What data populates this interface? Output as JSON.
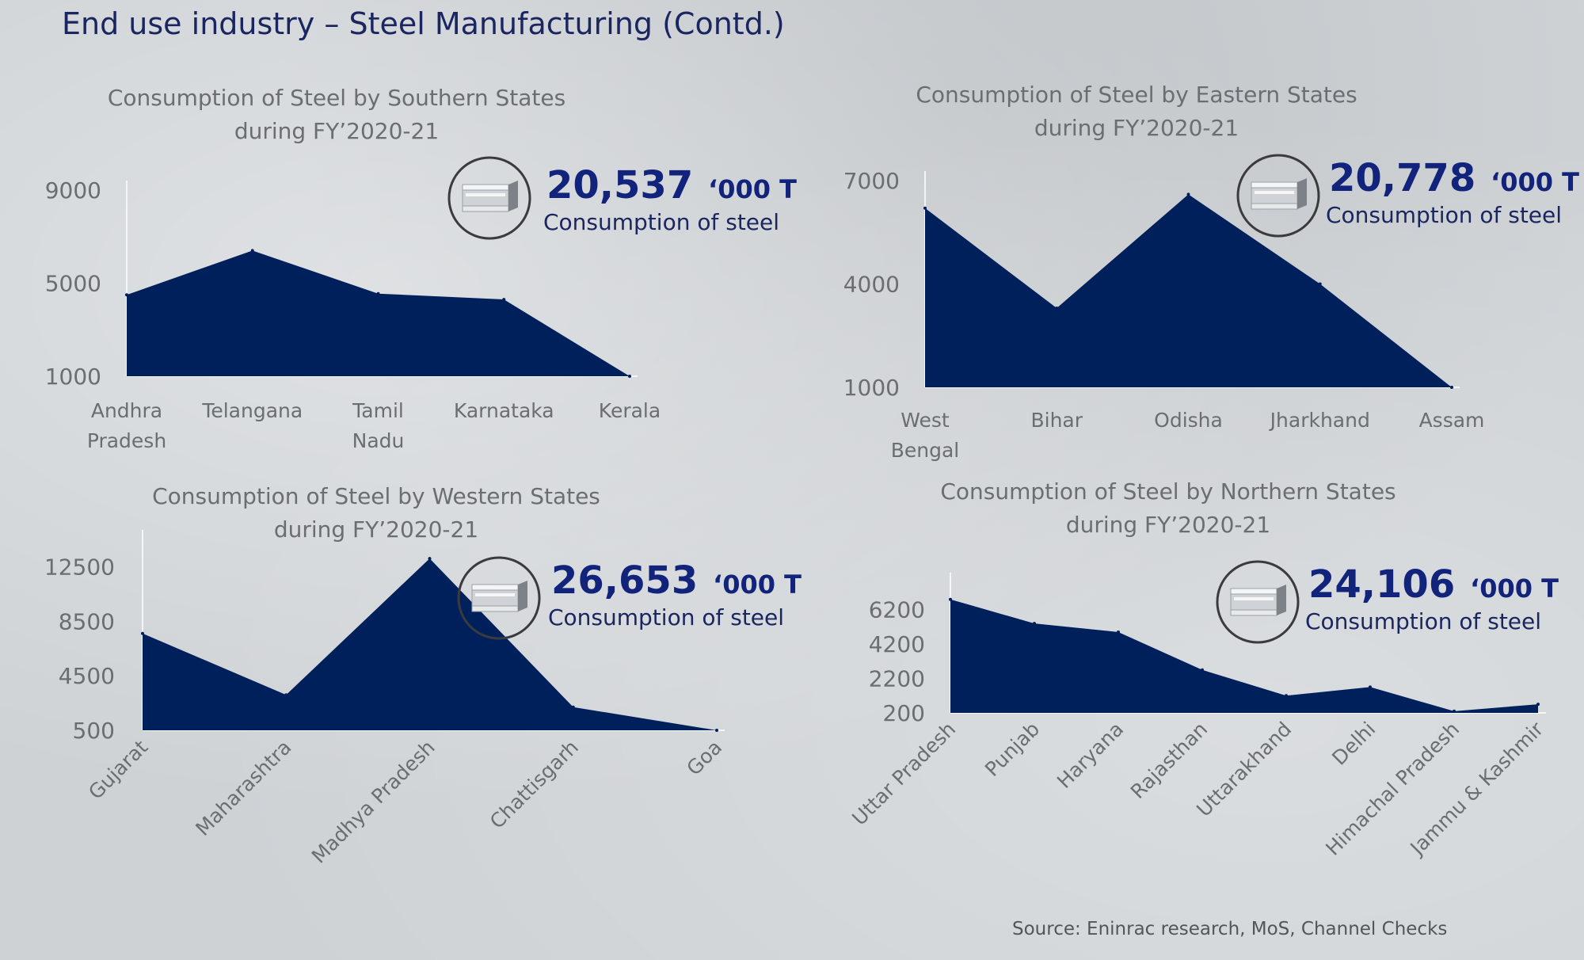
{
  "page": {
    "title": "End use industry – Steel Manufacturing (Contd.)",
    "source": "Source: Eninrac research, MoS, Channel Checks"
  },
  "chart_data": [
    {
      "id": "south",
      "type": "area",
      "title": [
        "Consumption of Steel by Southern States",
        "during FY’2020-21"
      ],
      "categories": [
        "Andhra Pradesh",
        "Telangana",
        "Tamil Nadu",
        "Karnataka",
        "Kerala"
      ],
      "category_lines": [
        [
          "Andhra",
          "Pradesh"
        ],
        [
          "Telangana"
        ],
        [
          "Tamil",
          "Nadu"
        ],
        [
          "Karnataka"
        ],
        [
          "Kerala"
        ]
      ],
      "values": [
        4500,
        6400,
        4550,
        4300,
        1000
      ],
      "yticks": [
        "9000",
        "5000",
        "1000"
      ],
      "ylim": [
        1000,
        9000
      ],
      "series_color": "#00205c",
      "callout": {
        "value": "20,537",
        "unit": "‘000 T",
        "label": "Consumption of steel",
        "icon": "steel-beam-icon"
      }
    },
    {
      "id": "east",
      "type": "area",
      "title": [
        "Consumption of Steel by Eastern States",
        "during FY’2020-21"
      ],
      "categories": [
        "West Bengal",
        "Bihar",
        "Odisha",
        "Jharkhand",
        "Assam"
      ],
      "category_lines": [
        [
          "West",
          "Bengal"
        ],
        [
          "Bihar"
        ],
        [
          "Odisha"
        ],
        [
          "Jharkhand"
        ],
        [
          "Assam"
        ]
      ],
      "values": [
        6200,
        3300,
        6600,
        4000,
        1000
      ],
      "yticks": [
        "7000",
        "4000",
        "1000"
      ],
      "ylim": [
        1000,
        7000
      ],
      "series_color": "#00205c",
      "callout": {
        "value": "20,778",
        "unit": "‘000 T",
        "label": "Consumption of steel",
        "icon": "steel-beam-icon"
      }
    },
    {
      "id": "west",
      "type": "area",
      "title": [
        "Consumption of Steel by Western States",
        "during FY’2020-21"
      ],
      "categories": [
        "Gujarat",
        "Maharashtra",
        "Madhya Pradesh",
        "Chattisgarh",
        "Goa"
      ],
      "values": [
        7600,
        3100,
        13100,
        2200,
        500
      ],
      "yticks": [
        "12500",
        "8500",
        "4500",
        "500"
      ],
      "ylim": [
        500,
        14500
      ],
      "series_color": "#00205c",
      "callout": {
        "value": "26,653",
        "unit": "‘000 T",
        "label": "Consumption of steel",
        "icon": "steel-beam-icon"
      }
    },
    {
      "id": "north",
      "type": "area",
      "title": [
        "Consumption of Steel by Northern States",
        "during FY’2020-21"
      ],
      "categories": [
        "Uttar Pradesh",
        "Punjab",
        "Haryana",
        "Rajasthan",
        "Uttarakhand",
        "Delhi",
        "Himachal Pradesh",
        "Jammu & Kashmir"
      ],
      "values": [
        6800,
        5400,
        4900,
        2700,
        1200,
        1700,
        300,
        700
      ],
      "yticks": [
        "6200",
        "4200",
        "2200",
        "200"
      ],
      "ylim": [
        200,
        7800
      ],
      "series_color": "#00205c",
      "callout": {
        "value": "24,106",
        "unit": "‘000 T",
        "label": "Consumption of steel",
        "icon": "steel-beam-icon"
      }
    }
  ]
}
